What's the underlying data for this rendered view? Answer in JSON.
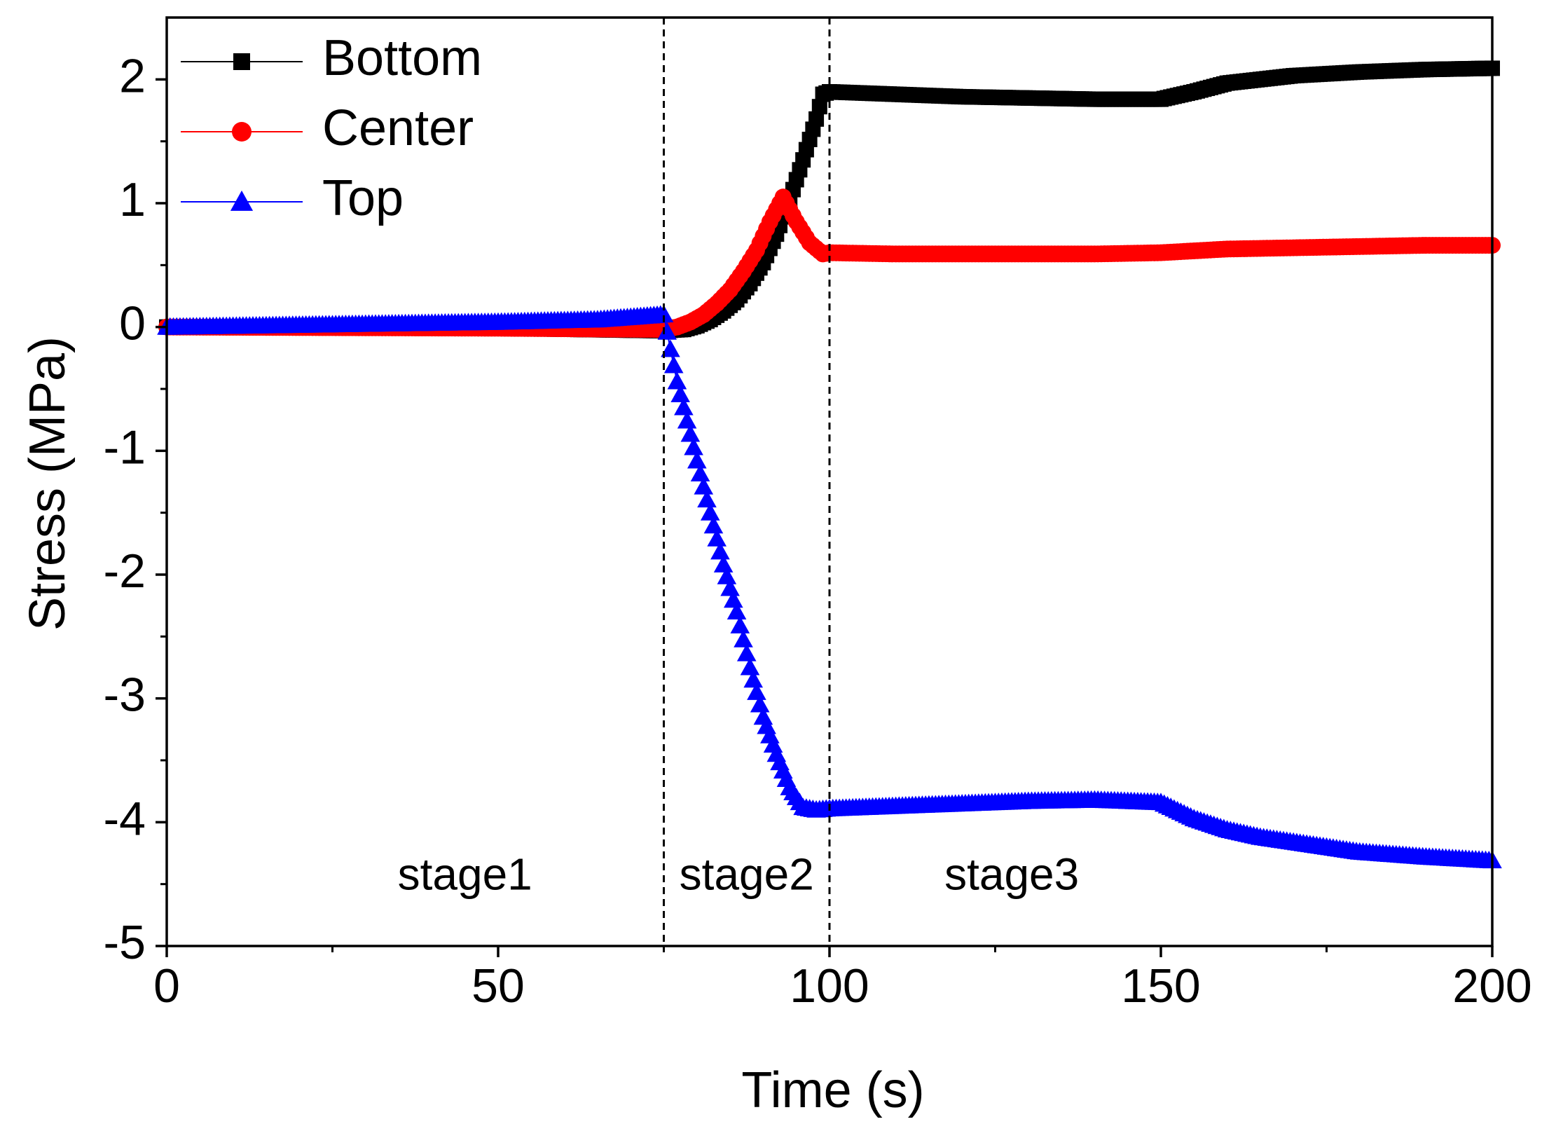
{
  "chart_data": {
    "type": "line",
    "title": "",
    "xlabel": "Time (s)",
    "ylabel": "Stress (MPa)",
    "xlim": [
      0,
      200
    ],
    "ylim": [
      -5,
      2.5
    ],
    "x_ticks": [
      0,
      50,
      100,
      150,
      200
    ],
    "y_ticks": [
      -5,
      -4,
      -3,
      -2,
      -1,
      0,
      1,
      2
    ],
    "grid": false,
    "legend_position": "top-left",
    "stage_lines": [
      75,
      100
    ],
    "stage_labels": [
      {
        "text": "stage1",
        "x": 45,
        "y": -4.45
      },
      {
        "text": "stage2",
        "x": 87.5,
        "y": -4.45
      },
      {
        "text": "stage3",
        "x": 127.5,
        "y": -4.45
      }
    ],
    "series": [
      {
        "name": "Bottom",
        "color": "#000000",
        "marker": "square",
        "points": [
          [
            0,
            0
          ],
          [
            50,
            -0.01
          ],
          [
            75,
            -0.03
          ],
          [
            78,
            -0.02
          ],
          [
            80,
            0.01
          ],
          [
            82,
            0.06
          ],
          [
            84,
            0.13
          ],
          [
            86,
            0.22
          ],
          [
            88,
            0.35
          ],
          [
            90,
            0.52
          ],
          [
            92,
            0.75
          ],
          [
            94,
            1.03
          ],
          [
            96,
            1.35
          ],
          [
            98,
            1.68
          ],
          [
            99,
            1.88
          ],
          [
            100,
            1.9
          ],
          [
            110,
            1.88
          ],
          [
            120,
            1.86
          ],
          [
            130,
            1.85
          ],
          [
            140,
            1.84
          ],
          [
            150,
            1.84
          ],
          [
            155,
            1.9
          ],
          [
            160,
            1.97
          ],
          [
            170,
            2.03
          ],
          [
            180,
            2.06
          ],
          [
            190,
            2.08
          ],
          [
            200,
            2.09
          ]
        ]
      },
      {
        "name": "Center",
        "color": "#ff0000",
        "marker": "circle",
        "points": [
          [
            0,
            0
          ],
          [
            50,
            -0.01
          ],
          [
            75,
            -0.02
          ],
          [
            77,
            0
          ],
          [
            79,
            0.04
          ],
          [
            81,
            0.1
          ],
          [
            83,
            0.19
          ],
          [
            85,
            0.3
          ],
          [
            87,
            0.45
          ],
          [
            89,
            0.62
          ],
          [
            91,
            0.85
          ],
          [
            93,
            1.05
          ],
          [
            95,
            0.85
          ],
          [
            97,
            0.68
          ],
          [
            99,
            0.59
          ],
          [
            100,
            0.6
          ],
          [
            110,
            0.59
          ],
          [
            120,
            0.59
          ],
          [
            130,
            0.59
          ],
          [
            140,
            0.59
          ],
          [
            150,
            0.6
          ],
          [
            160,
            0.63
          ],
          [
            170,
            0.64
          ],
          [
            180,
            0.65
          ],
          [
            190,
            0.66
          ],
          [
            200,
            0.66
          ]
        ]
      },
      {
        "name": "Top",
        "color": "#0000ff",
        "marker": "triangle",
        "points": [
          [
            0,
            0
          ],
          [
            25,
            0.02
          ],
          [
            50,
            0.04
          ],
          [
            65,
            0.06
          ],
          [
            75,
            0.1
          ],
          [
            76,
            -0.18
          ],
          [
            77,
            -0.44
          ],
          [
            78,
            -0.65
          ],
          [
            80,
            -1.08
          ],
          [
            82,
            -1.5
          ],
          [
            84,
            -1.92
          ],
          [
            86,
            -2.3
          ],
          [
            88,
            -2.75
          ],
          [
            90,
            -3.15
          ],
          [
            92,
            -3.45
          ],
          [
            94,
            -3.72
          ],
          [
            96,
            -3.88
          ],
          [
            98,
            -3.9
          ],
          [
            100,
            -3.89
          ],
          [
            110,
            -3.87
          ],
          [
            120,
            -3.85
          ],
          [
            130,
            -3.83
          ],
          [
            140,
            -3.82
          ],
          [
            150,
            -3.84
          ],
          [
            155,
            -3.97
          ],
          [
            160,
            -4.06
          ],
          [
            165,
            -4.12
          ],
          [
            170,
            -4.16
          ],
          [
            180,
            -4.24
          ],
          [
            190,
            -4.28
          ],
          [
            200,
            -4.31
          ]
        ]
      }
    ]
  }
}
